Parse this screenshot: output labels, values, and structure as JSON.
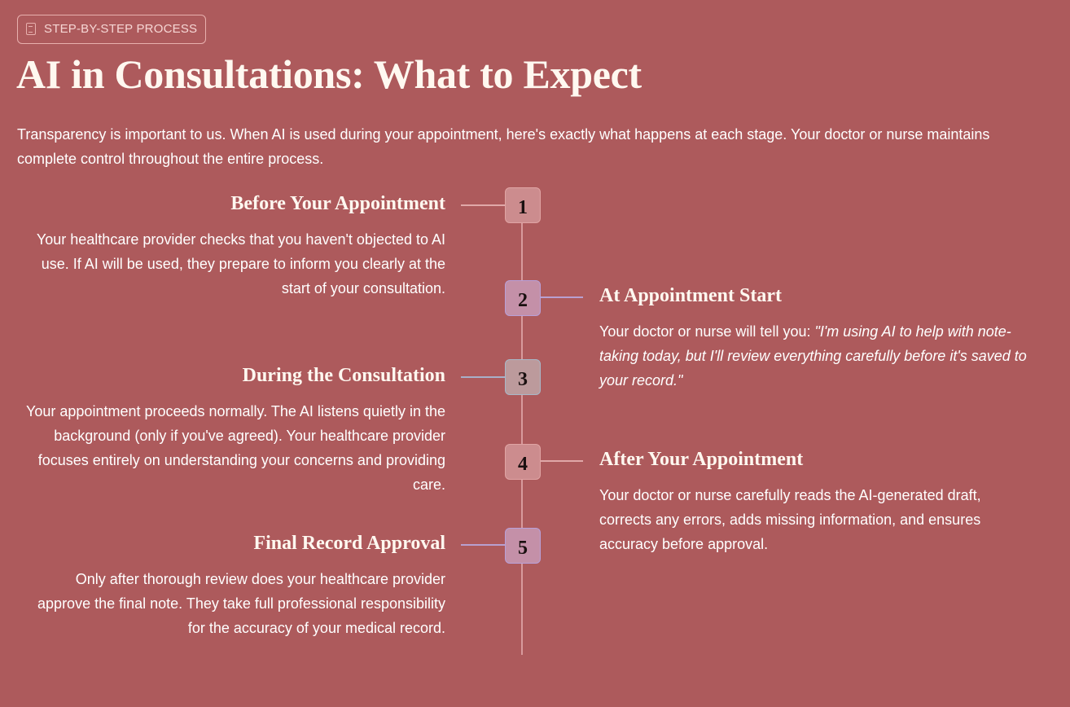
{
  "badge": {
    "icon": "checklist-icon",
    "label": "STEP-BY-STEP PROCESS"
  },
  "title": "AI in Consultations: What to Expect",
  "intro": "Transparency is important to us. When AI is used during your appointment, here's exactly what happens at each stage. Your doctor or nurse maintains complete control throughout the entire process.",
  "colors": {
    "background": "#ad5a5c",
    "step_pink": "#cc8c8e",
    "step_lavender": "#c490a8",
    "step_grey": "#bc9a9c"
  },
  "steps": [
    {
      "number": "1",
      "title": "Before Your Appointment",
      "text": "Your healthcare provider checks that you haven't objected to AI use. If AI will be used, they prepare to inform you clearly at the start of your consultation."
    },
    {
      "number": "2",
      "title": "At Appointment Start",
      "text_prefix": "Your doctor or nurse will tell you: ",
      "quote": "\"I'm using AI to help with note-taking today, but I'll review everything carefully before it's saved to your record.\""
    },
    {
      "number": "3",
      "title": "During the Consultation",
      "text": "Your appointment proceeds normally. The AI listens quietly in the background (only if you've agreed). Your healthcare provider focuses entirely on understanding your concerns and providing care."
    },
    {
      "number": "4",
      "title": "After Your Appointment",
      "text": "Your doctor or nurse carefully reads the AI-generated draft, corrects any errors, adds missing information, and ensures accuracy before approval."
    },
    {
      "number": "5",
      "title": "Final Record Approval",
      "text": "Only after thorough review does your healthcare provider approve the final note. They take full professional responsibility for the accuracy of your medical record."
    }
  ]
}
